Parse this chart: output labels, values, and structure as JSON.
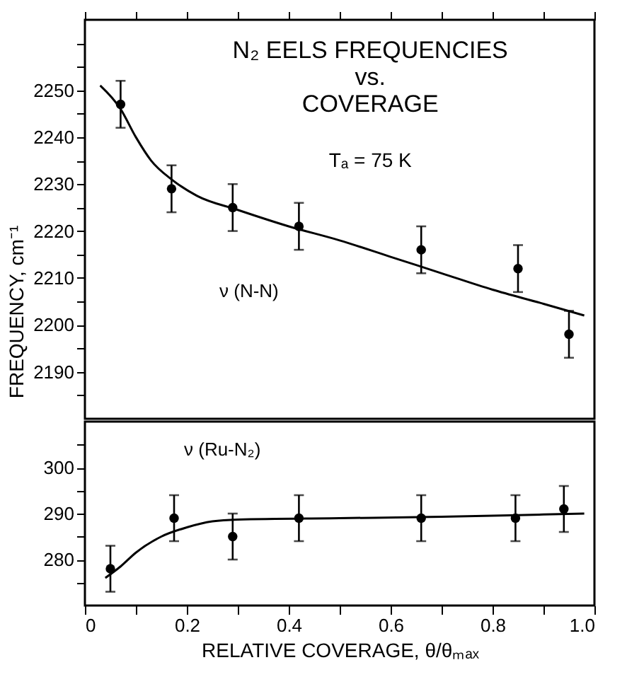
{
  "chart_data": [
    {
      "type": "scatter",
      "title": "N₂ EELS FREQUENCIES\nvs.\nCOVERAGE",
      "ylabel": "FREQUENCY, cm⁻¹",
      "annotations": [
        "Tₐ = 75 K"
      ],
      "tick_labels": "y",
      "xlim": [
        0,
        1
      ],
      "xticks": [
        {
          "value": 0,
          "label": null
        },
        {
          "value": 0.1,
          "label": null
        },
        {
          "value": 0.2,
          "label": null
        },
        {
          "value": 0.3,
          "label": null
        },
        {
          "value": 0.4,
          "label": null
        },
        {
          "value": 0.5,
          "label": null
        },
        {
          "value": 0.6,
          "label": null
        },
        {
          "value": 0.7,
          "label": null
        },
        {
          "value": 0.8,
          "label": null
        },
        {
          "value": 0.9,
          "label": null
        },
        {
          "value": 1,
          "label": null
        }
      ],
      "ylim": [
        2180,
        2265
      ],
      "yticks": [
        {
          "value": 2185,
          "label": null
        },
        2190,
        {
          "value": 2195,
          "label": null
        },
        2200,
        {
          "value": 2205,
          "label": null
        },
        2210,
        {
          "value": 2215,
          "label": null
        },
        2220,
        {
          "value": 2225,
          "label": null
        },
        2230,
        {
          "value": 2235,
          "label": null
        },
        2240,
        {
          "value": 2245,
          "label": null
        },
        2250,
        {
          "value": 2255,
          "label": null
        },
        {
          "value": 2260,
          "label": null
        }
      ],
      "series": [
        {
          "name": "ν (N-N)",
          "color": "#000000",
          "marker": "circle",
          "x": [
            0.07,
            0.17,
            0.29,
            0.42,
            0.66,
            0.85,
            0.95
          ],
          "values": [
            2247,
            2229,
            2225,
            2221,
            2216,
            2212,
            2198
          ],
          "errors": [
            5,
            5,
            5,
            5,
            5,
            5,
            5
          ]
        },
        {
          "type": "line",
          "color": "#000000",
          "marker": "none",
          "line_style": "solid",
          "x": [
            0.03,
            0.07,
            0.1,
            0.13,
            0.17,
            0.22,
            0.3,
            0.4,
            0.5,
            0.6,
            0.7,
            0.8,
            0.9,
            0.98
          ],
          "values": [
            2251,
            2246,
            2240,
            2235,
            2231,
            2227.5,
            2224.5,
            2221,
            2218,
            2214.5,
            2211,
            2207.5,
            2204.5,
            2202
          ]
        }
      ]
    },
    {
      "type": "scatter",
      "xlabel": "RELATIVE COVERAGE, θ/θₘₐₓ",
      "xlim": [
        0,
        1
      ],
      "xticks": [
        0,
        {
          "value": 0.1,
          "label": null
        },
        0.2,
        {
          "value": 0.3,
          "label": null
        },
        0.4,
        {
          "value": 0.5,
          "label": null
        },
        0.6,
        {
          "value": 0.7,
          "label": null
        },
        0.8,
        {
          "value": 0.9,
          "label": null
        },
        {
          "value": 1,
          "label": "1.0"
        }
      ],
      "ylim": [
        270,
        310
      ],
      "yticks": [
        {
          "value": 275,
          "label": null
        },
        280,
        {
          "value": 285,
          "label": null
        },
        290,
        {
          "value": 295,
          "label": null
        },
        300,
        {
          "value": 305,
          "label": null
        }
      ],
      "series": [
        {
          "name": "ν (Ru-N₂)",
          "color": "#000000",
          "marker": "circle",
          "x": [
            0.05,
            0.175,
            0.29,
            0.42,
            0.66,
            0.845,
            0.94
          ],
          "values": [
            278,
            289,
            285,
            289,
            289,
            289,
            291
          ],
          "errors": [
            5,
            5,
            5,
            5,
            5,
            5,
            5
          ]
        },
        {
          "type": "line",
          "color": "#000000",
          "marker": "none",
          "line_style": "solid",
          "x": [
            0.04,
            0.07,
            0.1,
            0.15,
            0.2,
            0.25,
            0.3,
            0.5,
            0.7,
            0.9,
            0.98
          ],
          "values": [
            276,
            278.5,
            281.5,
            285,
            287,
            288.3,
            288.7,
            289,
            289.3,
            289.8,
            290
          ]
        }
      ]
    }
  ]
}
